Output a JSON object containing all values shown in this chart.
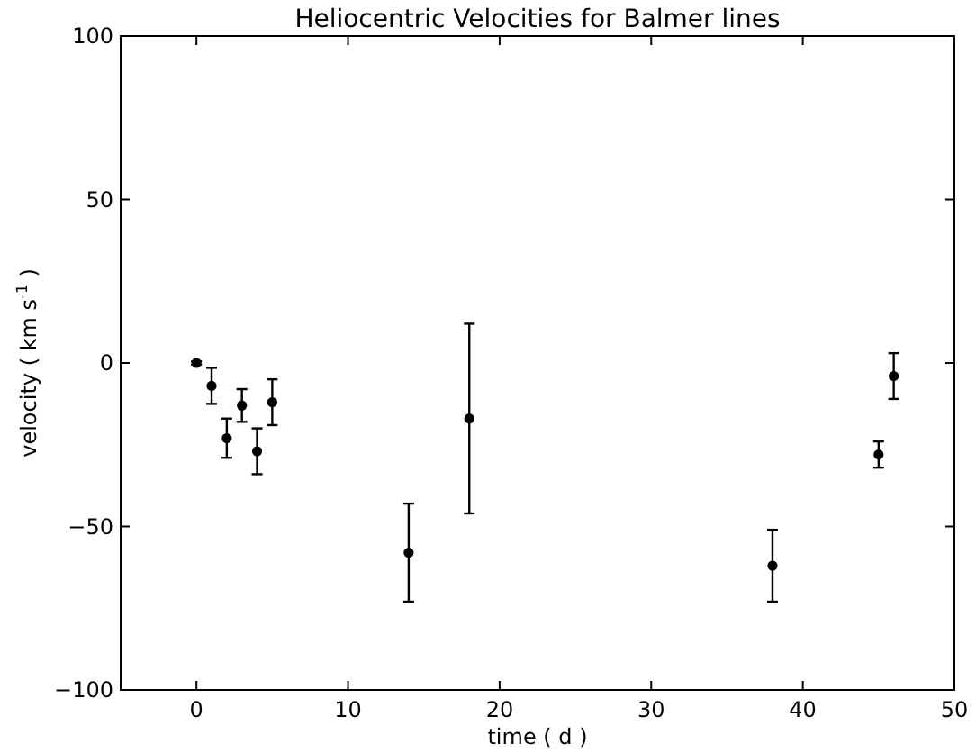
{
  "chart_data": {
    "type": "scatter",
    "title": "Heliocentric Velocities for Balmer lines",
    "xlabel": "time ( d )",
    "ylabel": "velocity ( km s$^{-1}$ )",
    "x": [
      0,
      1,
      2,
      3,
      4,
      5,
      14,
      18,
      38,
      45,
      46
    ],
    "values": [
      0,
      -7,
      -23,
      -13,
      -27,
      -12,
      -58,
      -17,
      -62,
      -28,
      -4
    ],
    "errors": [
      0.5,
      5.5,
      6,
      5,
      7,
      7,
      15,
      29,
      11,
      4,
      7
    ],
    "color": "#000000",
    "marker": "circle",
    "xlim": [
      -5,
      50
    ],
    "xticks": [
      0,
      10,
      20,
      30,
      40,
      50
    ],
    "ylim": [
      -100,
      100
    ],
    "yticks": [
      -100,
      -50,
      0,
      50,
      100
    ],
    "grid": false
  }
}
